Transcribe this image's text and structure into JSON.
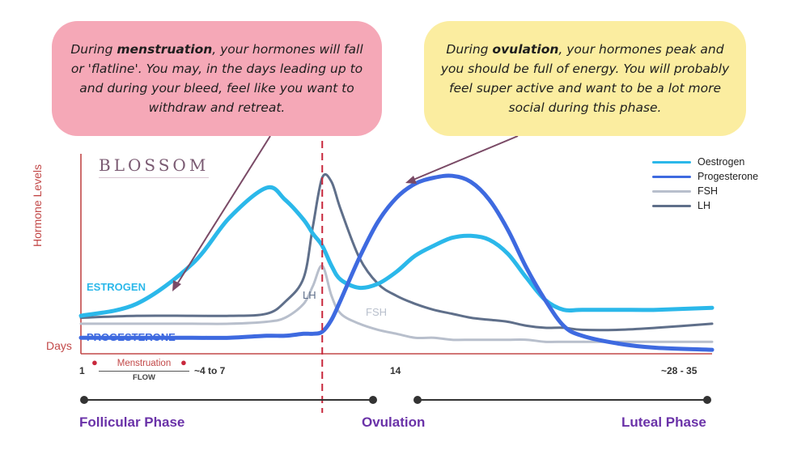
{
  "bubbles": {
    "left": {
      "pre": "During ",
      "bold": "menstruation",
      "post": ", your hormones will fall or 'flatline'.  You may, in the days leading up to and during your bleed, feel like you want to withdraw and retreat."
    },
    "right": {
      "pre": "During ",
      "bold": "ovulation",
      "post": ", your hormones peak and you should be full of energy. You will probably feel super active and want to be a lot more social during this phase."
    }
  },
  "brand": "BLOSSOM",
  "chart_data": {
    "type": "line",
    "title": "",
    "ylabel": "Hormone Levels",
    "xlabel": "Days",
    "x": [
      1,
      4,
      7,
      9,
      11,
      12,
      13,
      13.5,
      14,
      14.5,
      15,
      16,
      17,
      18,
      19,
      20,
      21,
      22,
      23,
      24,
      25,
      26,
      27,
      28,
      30,
      32,
      35
    ],
    "xlim": [
      1,
      35
    ],
    "ylim": [
      0,
      100
    ],
    "series": [
      {
        "name": "Oestrogen",
        "color": "#2bb8ea",
        "label": "ESTROGEN",
        "values": [
          19,
          25,
          45,
          68,
          83,
          77,
          67,
          60,
          54,
          44,
          37,
          33,
          35,
          41,
          49,
          54,
          58,
          59,
          57,
          50,
          38,
          27,
          22,
          22,
          22,
          22,
          23
        ]
      },
      {
        "name": "Progesterone",
        "color": "#3e6ae0",
        "label": "PROGESTERONE",
        "values": [
          8,
          8,
          8,
          8,
          9,
          9,
          10,
          10,
          11,
          17,
          27,
          48,
          66,
          78,
          85,
          88,
          89,
          86,
          77,
          62,
          43,
          27,
          14,
          9,
          5,
          3,
          2
        ]
      },
      {
        "name": "FSH",
        "color": "#b8bfcc",
        "label": "FSH",
        "values": [
          15,
          15,
          15,
          15,
          16,
          18,
          25,
          34,
          44,
          29,
          20,
          15,
          12,
          10,
          8,
          8,
          7,
          7,
          7,
          7,
          7,
          6,
          6,
          6,
          6,
          6,
          6
        ]
      },
      {
        "name": "LH",
        "color": "#5f6f8a",
        "label": "LH",
        "values": [
          18,
          19,
          19,
          19,
          20,
          26,
          38,
          64,
          88,
          86,
          72,
          48,
          35,
          29,
          25,
          22,
          20,
          18,
          17,
          16,
          14,
          13,
          13,
          12,
          12,
          13,
          15
        ]
      }
    ],
    "ovulation_day": 14,
    "ticks": {
      "start": "1",
      "menses_end": "~4 to 7",
      "ovulation": "14",
      "end": "~28 - 35"
    },
    "menstruation": {
      "label": "Menstruation",
      "sublabel": "FLOW"
    },
    "phases": [
      "Follicular Phase",
      "Ovulation",
      "Luteal Phase"
    ],
    "legend_position": "top-right"
  }
}
